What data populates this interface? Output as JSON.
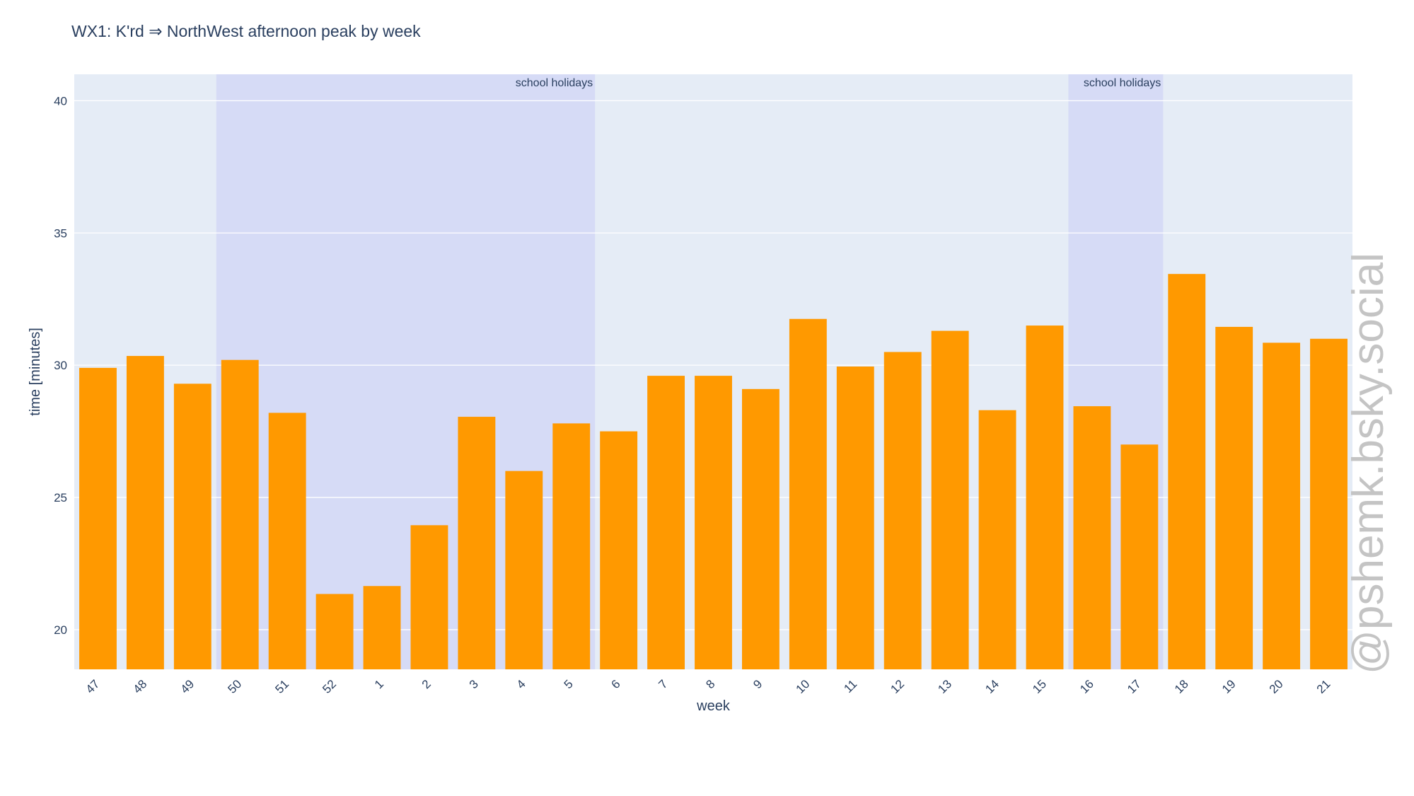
{
  "chart_data": {
    "type": "bar",
    "title": "WX1: K'rd ⇒ NorthWest afternoon peak by week",
    "xlabel": "week",
    "ylabel": "time [minutes]",
    "categories": [
      "47",
      "48",
      "49",
      "50",
      "51",
      "52",
      "1",
      "2",
      "3",
      "4",
      "5",
      "6",
      "7",
      "8",
      "9",
      "10",
      "11",
      "12",
      "13",
      "14",
      "15",
      "16",
      "17",
      "18",
      "19",
      "20",
      "21"
    ],
    "values": [
      29.9,
      30.35,
      29.3,
      30.2,
      28.2,
      21.35,
      21.65,
      23.95,
      28.05,
      26.0,
      27.8,
      27.5,
      29.6,
      29.6,
      29.1,
      31.75,
      29.95,
      30.5,
      31.3,
      28.3,
      31.5,
      28.45,
      27.0,
      33.45,
      31.45,
      30.85,
      31.0
    ],
    "ylim": [
      18.5,
      41
    ],
    "yticks": [
      20,
      25,
      30,
      35,
      40
    ],
    "bar_color": "#ff9900",
    "plot_bg": "#e5ecf6",
    "grid": true,
    "shaded_regions": [
      {
        "label": "school holidays",
        "from_category": "50",
        "to_category": "5",
        "color": "#d6dbf6"
      },
      {
        "label": "school holidays",
        "from_category": "16",
        "to_category": "17",
        "color": "#d6dbf6"
      }
    ]
  },
  "watermark": "@pshemk.bsky.social"
}
